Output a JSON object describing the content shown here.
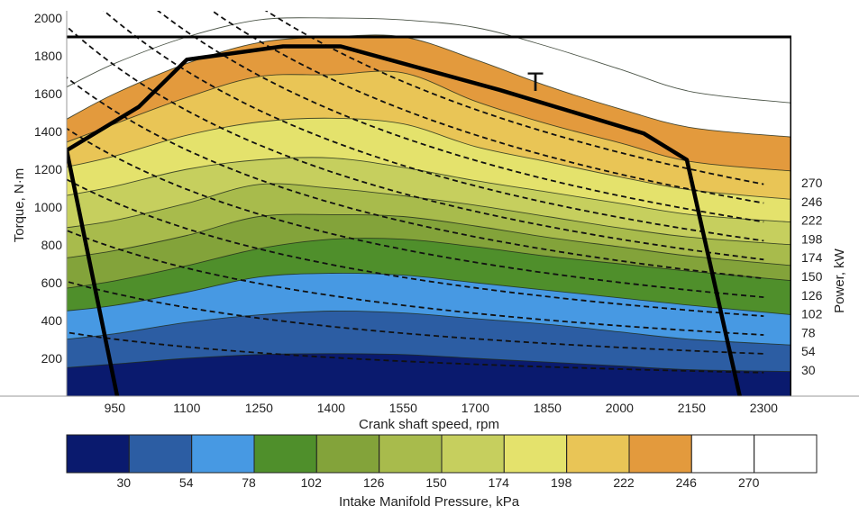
{
  "chart_data": {
    "type": "heatmap",
    "title": "",
    "xlabel": "Crank shaft speed, rpm",
    "ylabel": "Torque, N·m",
    "y2label": "Power, kW",
    "colorbar_label": "Intake Manifold Pressure, kPa",
    "x_ticks": [
      "950",
      "1100",
      "1250",
      "1400",
      "1550",
      "1700",
      "1850",
      "2000",
      "2150",
      "2300"
    ],
    "y_ticks": [
      "200",
      "400",
      "600",
      "800",
      "1000",
      "1200",
      "1400",
      "1600",
      "1800",
      "2000"
    ],
    "power_labels": [
      "270",
      "246",
      "222",
      "198",
      "174",
      "150",
      "126",
      "102",
      "78",
      "54",
      "30"
    ],
    "colorbar_ticks": [
      "30",
      "54",
      "78",
      "102",
      "126",
      "150",
      "174",
      "198",
      "222",
      "246",
      "270"
    ],
    "annotation": "T",
    "xlim": [
      800,
      2300
    ],
    "ylim": [
      0,
      2050
    ],
    "band_colors": [
      "#0a1a6e",
      "#2c5da3",
      "#4799e3",
      "#4f8f2b",
      "#83a33a",
      "#a8bb4c",
      "#c6cf5e",
      "#e4e26c",
      "#e9c556",
      "#e39a3d",
      "#ffffff",
      "#ffffff"
    ],
    "band_boundaries": [
      {
        "kpa": 30,
        "torque": [
          [
            850,
            150
          ],
          [
            950,
            170
          ],
          [
            1100,
            200
          ],
          [
            1250,
            220
          ],
          [
            1400,
            225
          ],
          [
            1550,
            220
          ],
          [
            1700,
            200
          ],
          [
            1850,
            180
          ],
          [
            2000,
            160
          ],
          [
            2150,
            140
          ],
          [
            2250,
            130
          ]
        ]
      },
      {
        "kpa": 54,
        "torque": [
          [
            850,
            300
          ],
          [
            950,
            330
          ],
          [
            1100,
            390
          ],
          [
            1250,
            430
          ],
          [
            1400,
            450
          ],
          [
            1550,
            440
          ],
          [
            1700,
            410
          ],
          [
            1850,
            380
          ],
          [
            2000,
            340
          ],
          [
            2150,
            300
          ],
          [
            2250,
            270
          ]
        ]
      },
      {
        "kpa": 78,
        "torque": [
          [
            850,
            450
          ],
          [
            950,
            480
          ],
          [
            1100,
            550
          ],
          [
            1250,
            630
          ],
          [
            1400,
            650
          ],
          [
            1550,
            640
          ],
          [
            1700,
            600
          ],
          [
            1850,
            560
          ],
          [
            2000,
            520
          ],
          [
            2150,
            480
          ],
          [
            2250,
            430
          ]
        ]
      },
      {
        "kpa": 102,
        "torque": [
          [
            850,
            570
          ],
          [
            950,
            610
          ],
          [
            1100,
            690
          ],
          [
            1250,
            780
          ],
          [
            1400,
            830
          ],
          [
            1550,
            830
          ],
          [
            1700,
            790
          ],
          [
            1850,
            740
          ],
          [
            2000,
            700
          ],
          [
            2150,
            660
          ],
          [
            2250,
            610
          ]
        ]
      },
      {
        "kpa": 126,
        "torque": [
          [
            850,
            730
          ],
          [
            950,
            770
          ],
          [
            1100,
            850
          ],
          [
            1250,
            950
          ],
          [
            1400,
            960
          ],
          [
            1550,
            950
          ],
          [
            1700,
            900
          ],
          [
            1850,
            840
          ],
          [
            2000,
            790
          ],
          [
            2150,
            740
          ],
          [
            2250,
            690
          ]
        ]
      },
      {
        "kpa": 150,
        "torque": [
          [
            850,
            890
          ],
          [
            950,
            930
          ],
          [
            1100,
            1020
          ],
          [
            1250,
            1120
          ],
          [
            1400,
            1100
          ],
          [
            1550,
            1060
          ],
          [
            1700,
            1010
          ],
          [
            1850,
            950
          ],
          [
            2000,
            890
          ],
          [
            2150,
            840
          ],
          [
            2250,
            800
          ]
        ]
      },
      {
        "kpa": 174,
        "torque": [
          [
            850,
            1060
          ],
          [
            950,
            1110
          ],
          [
            1100,
            1200
          ],
          [
            1250,
            1250
          ],
          [
            1400,
            1260
          ],
          [
            1550,
            1210
          ],
          [
            1700,
            1140
          ],
          [
            1850,
            1080
          ],
          [
            2000,
            1020
          ],
          [
            2150,
            960
          ],
          [
            2250,
            920
          ]
        ]
      },
      {
        "kpa": 198,
        "torque": [
          [
            850,
            1210
          ],
          [
            950,
            1270
          ],
          [
            1100,
            1380
          ],
          [
            1250,
            1450
          ],
          [
            1400,
            1470
          ],
          [
            1550,
            1440
          ],
          [
            1700,
            1320
          ],
          [
            1850,
            1240
          ],
          [
            2000,
            1160
          ],
          [
            2150,
            1090
          ],
          [
            2250,
            1040
          ]
        ]
      },
      {
        "kpa": 222,
        "torque": [
          [
            850,
            1340
          ],
          [
            950,
            1440
          ],
          [
            1100,
            1580
          ],
          [
            1250,
            1690
          ],
          [
            1400,
            1700
          ],
          [
            1550,
            1710
          ],
          [
            1700,
            1560
          ],
          [
            1850,
            1440
          ],
          [
            2000,
            1340
          ],
          [
            2150,
            1240
          ],
          [
            2250,
            1190
          ]
        ]
      },
      {
        "kpa": 246,
        "torque": [
          [
            850,
            1460
          ],
          [
            950,
            1600
          ],
          [
            1100,
            1760
          ],
          [
            1250,
            1870
          ],
          [
            1400,
            1900
          ],
          [
            1550,
            1900
          ],
          [
            1700,
            1780
          ],
          [
            1850,
            1640
          ],
          [
            2000,
            1520
          ],
          [
            2150,
            1420
          ],
          [
            2250,
            1370
          ]
        ]
      },
      {
        "kpa": 270,
        "torque": [
          [
            850,
            1630
          ],
          [
            950,
            1760
          ],
          [
            1100,
            1900
          ],
          [
            1250,
            1990
          ],
          [
            1400,
            2000
          ],
          [
            1550,
            1990
          ],
          [
            1700,
            1950
          ],
          [
            1850,
            1850
          ],
          [
            2000,
            1730
          ],
          [
            2150,
            1610
          ],
          [
            2250,
            1550
          ]
        ]
      }
    ],
    "torque_envelope": [
      [
        850,
        1300
      ],
      [
        1000,
        1530
      ],
      [
        1100,
        1780
      ],
      [
        1300,
        1850
      ],
      [
        1420,
        1850
      ],
      [
        1750,
        1620
      ],
      [
        2050,
        1390
      ],
      [
        2140,
        1250
      ],
      [
        2250,
        0
      ]
    ],
    "left_boundary": [
      [
        850,
        1300
      ],
      [
        955,
        0
      ]
    ],
    "top_limit": 1900,
    "power_lines_kw": [
      270,
      246,
      222,
      198,
      174,
      150,
      126,
      102,
      78,
      54,
      30
    ]
  }
}
